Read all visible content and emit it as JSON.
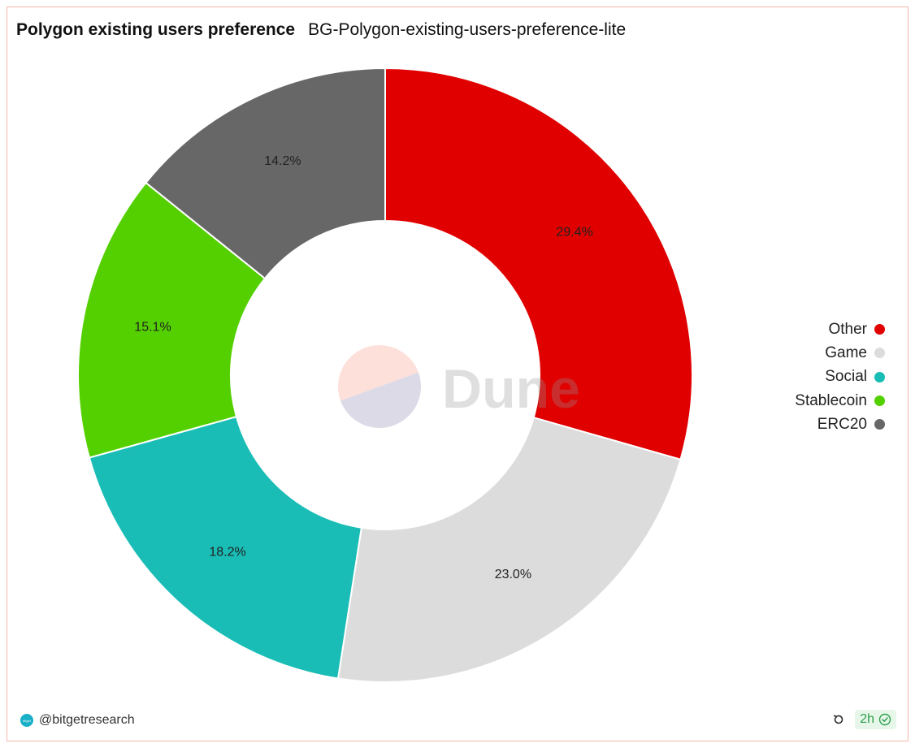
{
  "header": {
    "title": "Polygon existing users preference",
    "subtitle": "BG-Polygon-existing-users-preference-lite"
  },
  "chart_data": {
    "type": "pie",
    "donut": true,
    "categories": [
      "Other",
      "Game",
      "Social",
      "Stablecoin",
      "ERC20"
    ],
    "values": [
      29.4,
      23.0,
      18.2,
      15.1,
      14.2
    ],
    "value_labels": [
      "29.4%",
      "23.0%",
      "18.2%",
      "15.1%",
      "14.2%"
    ],
    "colors": [
      "#e00000",
      "#dcdcdc",
      "#19bdb6",
      "#54d000",
      "#676767"
    ],
    "legend_position": "right",
    "watermark": "Dune"
  },
  "legend": {
    "items": [
      {
        "label": "Other",
        "color": "#e00000"
      },
      {
        "label": "Game",
        "color": "#dcdcdc"
      },
      {
        "label": "Social",
        "color": "#19bdb6"
      },
      {
        "label": "Stablecoin",
        "color": "#54d000"
      },
      {
        "label": "ERC20",
        "color": "#676767"
      }
    ]
  },
  "footer": {
    "author": "@bitgetresearch",
    "refresh_age": "2h",
    "avatar_text": "bitget"
  }
}
